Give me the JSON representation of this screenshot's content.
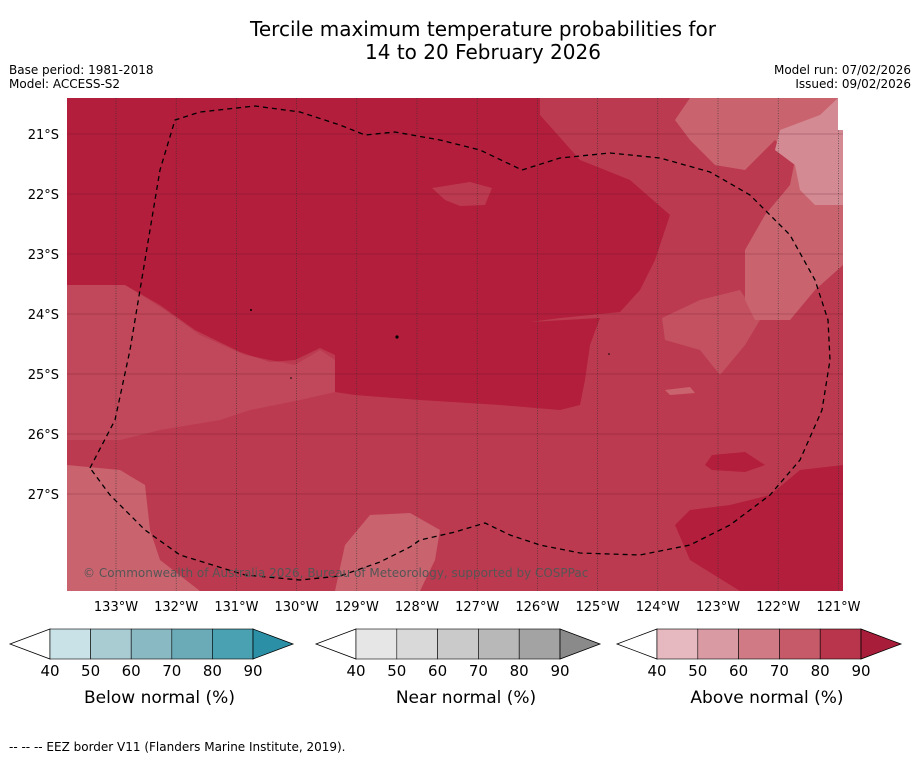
{
  "title": {
    "line1": "Tercile maximum temperature probabilities for",
    "line2": "14 to 20 February 2026"
  },
  "meta": {
    "base_period": "Base period: 1981-2018",
    "model": "Model: ACCESS-S2",
    "model_run": "Model run: 07/02/2026",
    "issued": "Issued: 09/02/2026"
  },
  "map": {
    "lon_range": [
      -133.8,
      -120.9
    ],
    "lat_range": [
      -28.6,
      -20.4
    ],
    "lon_ticks": [
      "133°W",
      "132°W",
      "131°W",
      "130°W",
      "129°W",
      "128°W",
      "127°W",
      "126°W",
      "125°W",
      "124°W",
      "123°W",
      "122°W",
      "121°W"
    ],
    "lat_ticks": [
      "21°S",
      "22°S",
      "23°S",
      "24°S",
      "25°S",
      "26°S",
      "27°S"
    ],
    "copyright": "© Commonwealth of Australia 2026, Bureau of Meteorology, supported by COSPPac",
    "colors": {
      "above_90": "#b21e3b",
      "above_80": "#bc3a4f",
      "above_70": "#c9646f",
      "above_60": "#d48a93"
    }
  },
  "colorbars": [
    {
      "label": "Below normal (%)",
      "ticks": [
        "40",
        "50",
        "60",
        "70",
        "80",
        "90"
      ],
      "colors": [
        "#c9e2e8",
        "#a9cbd2",
        "#89b9c3",
        "#6baab7",
        "#4aa1b1",
        "#2b8fa5"
      ]
    },
    {
      "label": "Near normal (%)",
      "ticks": [
        "40",
        "50",
        "60",
        "70",
        "80",
        "90"
      ],
      "colors": [
        "#e6e6e6",
        "#d9d9d9",
        "#cacaca",
        "#b8b8b8",
        "#a3a3a3",
        "#8a8a8a"
      ]
    },
    {
      "label": "Above normal (%)",
      "ticks": [
        "40",
        "50",
        "60",
        "70",
        "80",
        "90"
      ],
      "colors": [
        "#e6b8c0",
        "#da9aa3",
        "#cf7a85",
        "#c65a69",
        "#b9354b",
        "#a81d3a"
      ]
    }
  ],
  "footnote": "--  --  -- EEZ border V11 (Flanders Marine Institute, 2019)."
}
